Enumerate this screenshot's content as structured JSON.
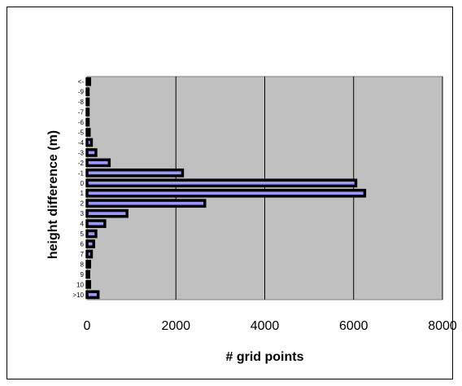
{
  "chart_data": {
    "type": "bar",
    "orientation": "horizontal",
    "categories": [
      "<-",
      "-9",
      "-8",
      "-7",
      "-6",
      "-5",
      "-4",
      "-3",
      "-2",
      "-1",
      "0",
      "1",
      "2",
      "3",
      "4",
      "5",
      "6",
      "7",
      "8",
      "9",
      "10",
      ">10"
    ],
    "values": [
      60,
      20,
      20,
      20,
      20,
      50,
      100,
      200,
      500,
      2150,
      6050,
      6250,
      2650,
      900,
      400,
      200,
      150,
      100,
      60,
      40,
      60,
      250
    ],
    "xlabel": "# grid points",
    "ylabel": "height difference (m)",
    "xlim": [
      0,
      8000
    ],
    "xticks": [
      "0",
      "2000",
      "4000",
      "6000",
      "8000"
    ],
    "grid": "vertical",
    "colors": {
      "bar_fill": "#9999FF",
      "bar_edge": "#000000",
      "plot_bg": "#C0C0C0",
      "gridline": "#000000"
    }
  }
}
